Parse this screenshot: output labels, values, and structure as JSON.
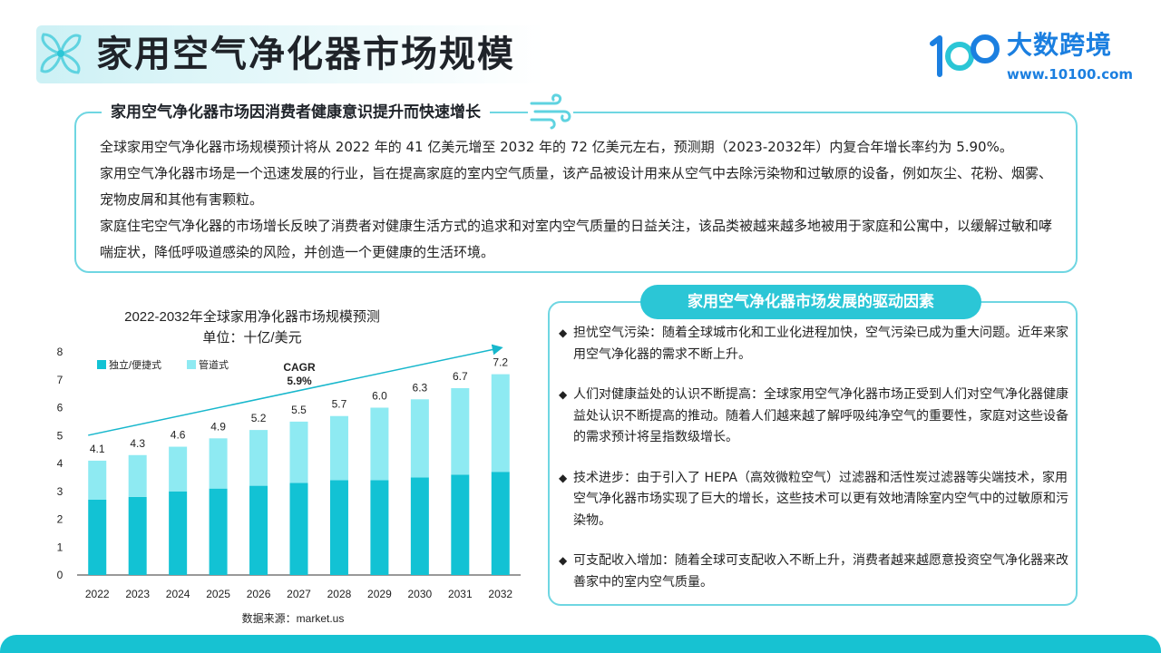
{
  "header": {
    "title": "家用空气净化器市场规模",
    "brand_name": "大数跨境",
    "brand_url": "www.10100.com"
  },
  "summary": {
    "heading": "家用空气净化器市场因消费者健康意识提升而快速增长",
    "paragraphs": [
      "全球家用空气净化器市场规模预计将从 2022 年的 41 亿美元增至 2032 年的 72 亿美元左右，预测期（2023-2032年）内复合年增长率约为 5.90%。",
      "家用空气净化器市场是一个迅速发展的行业，旨在提高家庭的室内空气质量，该产品被设计用来从空气中去除污染物和过敏原的设备，例如灰尘、花粉、烟雾、宠物皮屑和其他有害颗粒。",
      "家庭住宅空气净化器的市场增长反映了消费者对健康生活方式的追求和对室内空气质量的日益关注，该品类被越来越多地被用于家庭和公寓中，以缓解过敏和哮喘症状，降低呼吸道感染的风险，并创造一个更健康的生活环境。"
    ]
  },
  "chart_data": {
    "type": "bar",
    "stacked": true,
    "title": "2022-2032年全球家用净化器市场规模预测",
    "subtitle": "单位：十亿/美元",
    "categories": [
      "2022",
      "2023",
      "2024",
      "2025",
      "2026",
      "2027",
      "2028",
      "2029",
      "2030",
      "2031",
      "2032"
    ],
    "series": [
      {
        "name": "独立/便捷式",
        "color": "#12c2d4",
        "values": [
          2.7,
          2.8,
          3.0,
          3.1,
          3.2,
          3.3,
          3.4,
          3.4,
          3.5,
          3.6,
          3.7
        ]
      },
      {
        "name": "管道式",
        "color": "#8eeaf2",
        "values": [
          1.4,
          1.5,
          1.6,
          1.8,
          2.0,
          2.2,
          2.3,
          2.6,
          2.8,
          3.1,
          3.5
        ]
      }
    ],
    "totals": [
      "4.1",
      "4.3",
      "4.6",
      "4.9",
      "5.2",
      "5.5",
      "5.7",
      "6.0",
      "6.3",
      "6.7",
      "7.2"
    ],
    "ylim": [
      0,
      8
    ],
    "yticks": [
      "0",
      "1",
      "2",
      "3",
      "4",
      "5",
      "6",
      "7",
      "8"
    ],
    "annotation": {
      "label": "CAGR",
      "value": "5.9%"
    },
    "grid": false,
    "legend": "top-left",
    "source": "数据来源：market.us"
  },
  "drivers": {
    "heading": "家用空气净化器市场发展的驱动因素",
    "bullet": "◆",
    "items": [
      "担忧空气污染：随着全球城市化和工业化进程加快，空气污染已成为重大问题。近年来家用空气净化器的需求不断上升。",
      "人们对健康益处的认识不断提高：全球家用空气净化器市场正受到人们对空气净化器健康益处认识不断提高的推动。随着人们越来越了解呼吸纯净空气的重要性，家庭对这些设备的需求预计将呈指数级增长。",
      "技术进步：由于引入了 HEPA（高效微粒空气）过滤器和活性炭过滤器等尖端技术，家用空气净化器市场实现了巨大的增长，这些技术可以更有效地清除室内空气中的过敏原和污染物。",
      "可支配收入增加：随着全球可支配收入不断上升，消费者越来越愿意投资空气净化器来改善家中的室内空气质量。"
    ]
  },
  "colors": {
    "accent": "#2bc6d6",
    "border": "#6fd6e2",
    "brand": "#1b7fe0"
  }
}
